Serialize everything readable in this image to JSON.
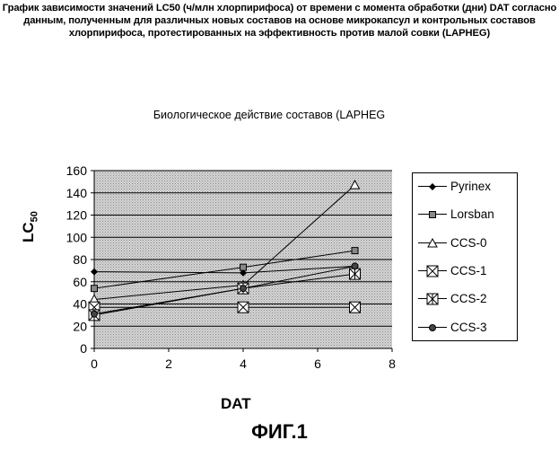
{
  "figure": {
    "heading_lines": [
      "График зависимости значений LC50 (ч/млн хлорпирифоса) от времени с момента обработки (дни) DAT согласно",
      "данным, полученным для различных новых составов на основе микрокапсул и контрольных составов",
      "хлорпирифоса, протестированных на эффективность против малой совки (LAPHEG)"
    ],
    "label": "ФИГ.1"
  },
  "chart_data": {
    "type": "line",
    "title": "Биологическое действие составов (LAPHEG",
    "xlabel": "DAT",
    "ylabel": "LC",
    "ylabel_subscript": "50",
    "xlim": [
      0,
      8
    ],
    "ylim": [
      0,
      160
    ],
    "x_ticks": [
      "0",
      "2",
      "4",
      "6",
      "8"
    ],
    "y_ticks": [
      "0",
      "20",
      "40",
      "60",
      "80",
      "100",
      "120",
      "140",
      "160"
    ],
    "grid": "horizontal",
    "plot_background": "#c0c0c0",
    "legend_position": "right",
    "x": [
      0,
      4,
      7
    ],
    "series": [
      {
        "name": "Pyrinex",
        "marker": "diamond",
        "values": [
          69,
          68,
          74
        ]
      },
      {
        "name": "Lorsban",
        "marker": "square",
        "values": [
          54,
          73,
          88
        ]
      },
      {
        "name": "CCS-0",
        "marker": "triangle",
        "values": [
          44,
          57,
          147
        ]
      },
      {
        "name": "CCS-1",
        "marker": "box-x",
        "values": [
          37,
          37,
          37
        ]
      },
      {
        "name": "CCS-2",
        "marker": "box-star",
        "values": [
          30,
          54,
          67
        ]
      },
      {
        "name": "CCS-3",
        "marker": "circle",
        "values": [
          31,
          54,
          74
        ]
      }
    ]
  }
}
